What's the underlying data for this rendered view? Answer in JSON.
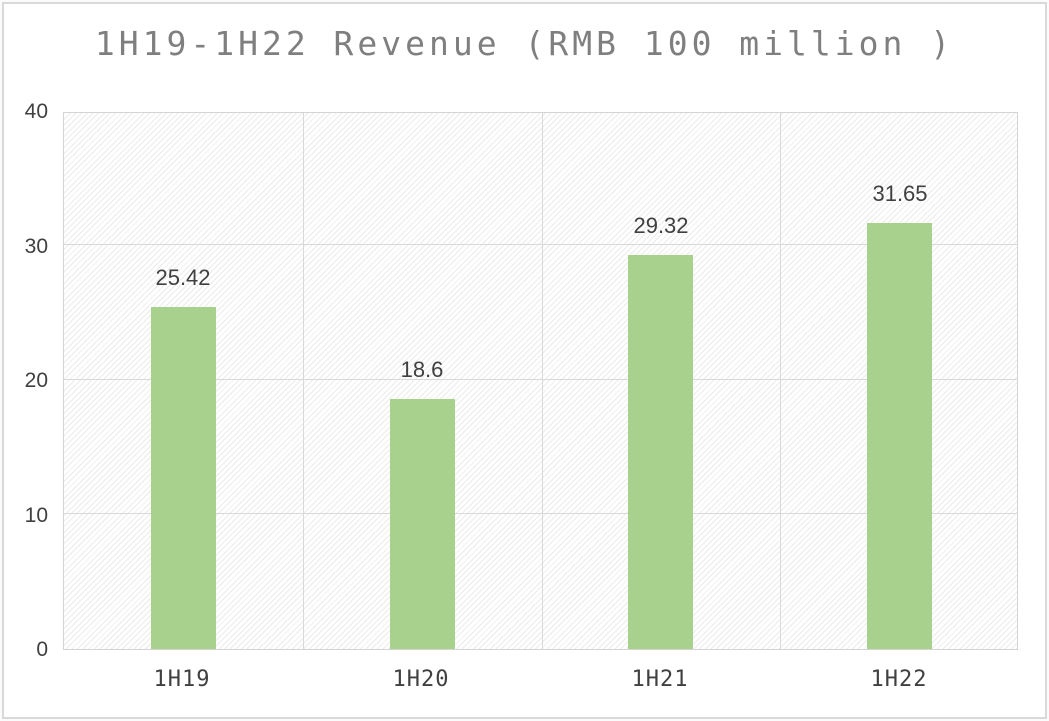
{
  "window": {
    "background_color": "#ffffff",
    "frame_border_color": "#d9d9d9"
  },
  "chart_data": {
    "type": "bar",
    "title": "1H19-1H22 Revenue (RMB 100 million )",
    "categories": [
      "1H19",
      "1H20",
      "1H21",
      "1H22"
    ],
    "values": [
      25.42,
      18.6,
      29.32,
      31.65
    ],
    "value_labels": [
      "25.42",
      "18.6",
      "29.32",
      "31.65"
    ],
    "xlabel": "",
    "ylabel": "",
    "ylim": [
      0,
      40
    ],
    "y_tick_step": 10,
    "y_tick_labels": [
      "0",
      "10",
      "20",
      "30",
      "40"
    ],
    "grid": true,
    "legend": "none",
    "plot_fill_pattern": "light-diagonal-stripe",
    "colors": {
      "bar": "#a9d18e",
      "gridline": "#d9d9d9",
      "plot_border": "#d4d4d4",
      "title_text": "#7f7f7f",
      "axis_text": "#404040",
      "value_label_text": "#404040",
      "hatch_line": "#ebebeb"
    }
  }
}
